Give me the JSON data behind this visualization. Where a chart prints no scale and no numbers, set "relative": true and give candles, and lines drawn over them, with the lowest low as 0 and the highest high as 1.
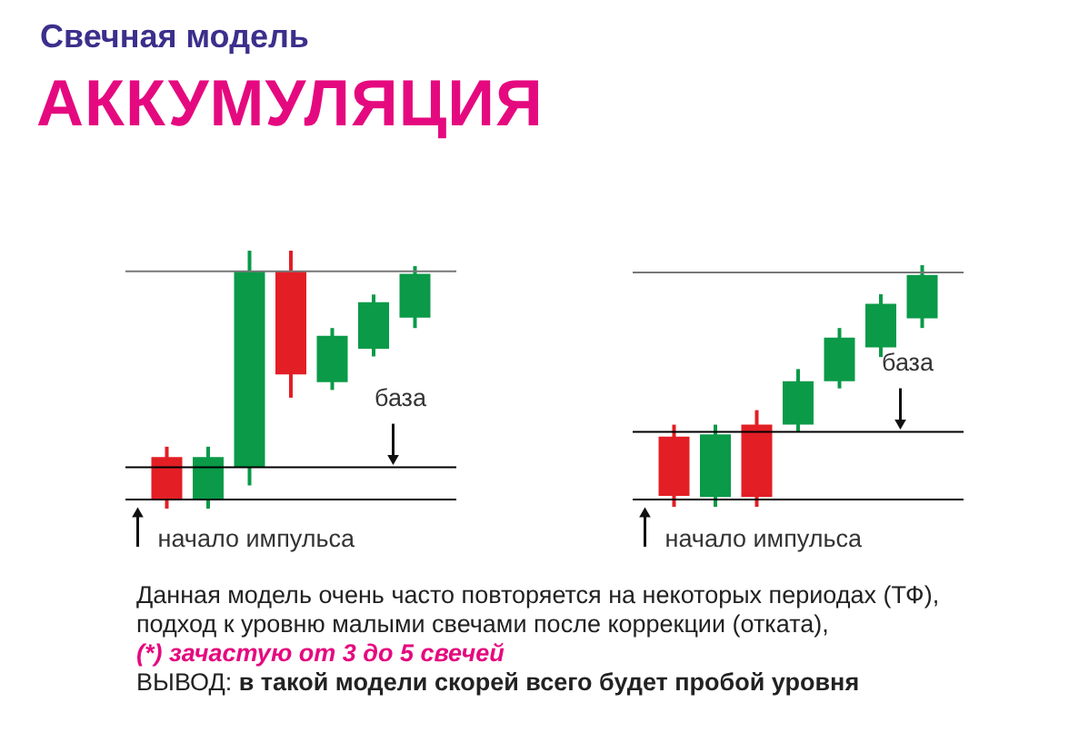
{
  "chart_data": [
    {
      "type": "candlestick",
      "title": "Свечная модель",
      "subtitle": "АККУМУЛЯЦИЯ",
      "relative": true,
      "categories": [
        null,
        null,
        null,
        null,
        null,
        null,
        null
      ],
      "ohlc": [
        [
          0.2,
          0.24,
          0,
          0.035
        ],
        [
          0.035,
          0.24,
          0,
          0.2
        ],
        [
          0.16,
          1,
          0.09,
          0.92
        ],
        [
          0.92,
          1,
          0.43,
          0.52
        ],
        [
          0.49,
          0.7,
          0.46,
          0.67
        ],
        [
          0.62,
          0.83,
          0.59,
          0.8
        ],
        [
          0.74,
          0.94,
          0.7,
          0.91
        ]
      ],
      "colors": [
        "#e31e25",
        "#0a9a48",
        "#0a9a48",
        "#e31e25",
        "#0a9a48",
        "#0a9a48",
        "#0a9a48"
      ],
      "ref_lines": [
        {
          "axis": "y",
          "value": 0.92,
          "color": "#777777"
        },
        {
          "axis": "y",
          "value": 0.16,
          "label": "база",
          "color": "#000000"
        },
        {
          "axis": "y",
          "value": 0.035,
          "label": "начало импульса",
          "color": "#000000"
        }
      ],
      "annotations": [
        "Данная модель очень часто повторяется на некоторых периодах (ТФ),",
        "подход к уровню малыми свечами после коррекции (отката),",
        "(*) зачастую от 3 до 5 свечей",
        "ВЫВОД: в такой модели скорей всего будет пробой уровня"
      ]
    },
    {
      "type": "candlestick",
      "relative": true,
      "categories": [
        null,
        null,
        null,
        null,
        null,
        null,
        null
      ],
      "ohlc": [
        [
          0.29,
          0.34,
          0,
          0.045
        ],
        [
          0.04,
          0.34,
          0,
          0.3
        ],
        [
          0.34,
          0.4,
          0,
          0.04
        ],
        [
          0.34,
          0.57,
          0.31,
          0.52
        ],
        [
          0.52,
          0.74,
          0.49,
          0.7
        ],
        [
          0.66,
          0.88,
          0.62,
          0.84
        ],
        [
          0.78,
          1,
          0.74,
          0.96
        ]
      ],
      "colors": [
        "#e31e25",
        "#0a9a48",
        "#e31e25",
        "#0a9a48",
        "#0a9a48",
        "#0a9a48",
        "#0a9a48"
      ],
      "ref_lines": [
        {
          "axis": "y",
          "value": 0.97,
          "color": "#777777"
        },
        {
          "axis": "y",
          "value": 0.31,
          "label": "база",
          "color": "#000000"
        },
        {
          "axis": "y",
          "value": 0.03,
          "label": "начало импульса",
          "color": "#000000"
        }
      ]
    }
  ]
}
